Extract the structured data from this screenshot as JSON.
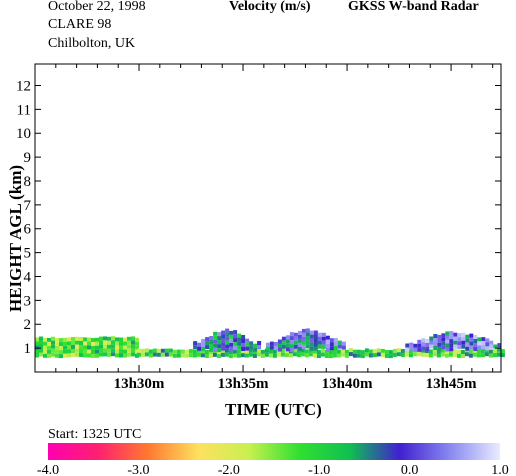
{
  "header": {
    "date": "October  22, 1998",
    "campaign": "CLARE 98",
    "location": "Chilbolton, UK",
    "quantity": "Velocity (m/s)",
    "instrument": "GKSS  W-band Radar"
  },
  "chart_data": {
    "type": "heatmap",
    "xlabel": "TIME (UTC)",
    "ylabel": "HEIGHT AGL (km)",
    "x_ticks": [
      "13h30m",
      "13h35m",
      "13h40m",
      "13h45m"
    ],
    "x_tick_minutes": [
      30,
      35,
      40,
      45
    ],
    "xlim_minutes": [
      25.0,
      47.4
    ],
    "ylim_km": [
      0,
      12.9
    ],
    "y_ticks": [
      1,
      2,
      3,
      4,
      5,
      6,
      7,
      8,
      9,
      10,
      11,
      12
    ],
    "start_label": "Start: 1325 UTC",
    "colorbar": {
      "range": [
        -4.0,
        1.0
      ],
      "tick_labels": [
        "-4.0",
        "-3.0",
        "-2.0",
        "-1.0",
        "0.0",
        "1.0"
      ],
      "tick_values": [
        -4.0,
        -3.0,
        -2.0,
        -1.0,
        0.0,
        1.0
      ],
      "colors": [
        "#ff00b0",
        "#ff2070",
        "#ff7a30",
        "#ffe060",
        "#c8f050",
        "#30e030",
        "#10c050",
        "#4020d0",
        "#8888f0",
        "#e8ecff"
      ]
    },
    "echo_regions": [
      {
        "t_start": 25.0,
        "t_end": 29.9,
        "h_bottom": 0.7,
        "h_top": 1.5,
        "mean_velocity": -1.3
      },
      {
        "t_start": 29.9,
        "t_end": 47.4,
        "h_bottom": 0.7,
        "h_top": 1.0,
        "mean_velocity": -1.1
      },
      {
        "t_start": 32.6,
        "t_end": 35.7,
        "h_bottom": 1.0,
        "h_top": 1.7,
        "mean_velocity": -0.2
      },
      {
        "t_start": 36.1,
        "t_end": 39.9,
        "h_bottom": 1.0,
        "h_top": 1.7,
        "mean_velocity": -0.1
      },
      {
        "t_start": 42.8,
        "t_end": 47.4,
        "h_bottom": 1.0,
        "h_top": 1.6,
        "mean_velocity": 0.1
      }
    ]
  }
}
